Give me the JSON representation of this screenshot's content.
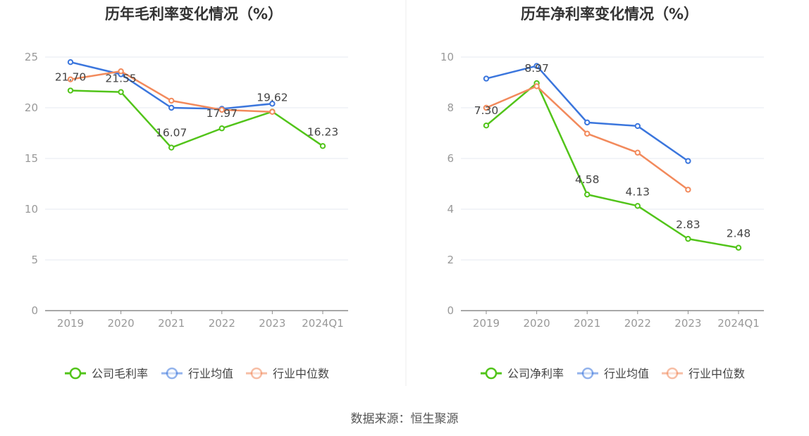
{
  "source": "数据来源：恒生聚源",
  "chart_data": [
    {
      "type": "line",
      "title": "历年毛利率变化情况（%）",
      "categories": [
        "2019",
        "2020",
        "2021",
        "2022",
        "2023",
        "2024Q1"
      ],
      "ylim": [
        0,
        25
      ],
      "yticks": [
        0,
        5,
        10,
        15,
        20,
        25
      ],
      "grid": true,
      "legend_position": "bottom",
      "series": [
        {
          "name": "公司毛利率",
          "color": "#52c41a",
          "values": [
            21.7,
            21.55,
            16.07,
            17.97,
            19.62,
            16.23
          ],
          "labels": [
            "21.70",
            "21.55",
            "16.07",
            "17.97",
            "19.62",
            "16.23"
          ]
        },
        {
          "name": "行业均值",
          "color": "#3b76dd",
          "values": [
            24.5,
            23.3,
            20.0,
            19.9,
            20.4,
            null
          ]
        },
        {
          "name": "行业中位数",
          "color": "#f28a5c",
          "values": [
            22.8,
            23.6,
            20.7,
            19.8,
            19.6,
            null
          ]
        }
      ]
    },
    {
      "type": "line",
      "title": "历年净利率变化情况（%）",
      "categories": [
        "2019",
        "2020",
        "2021",
        "2022",
        "2023",
        "2024Q1"
      ],
      "ylim": [
        0,
        10
      ],
      "yticks": [
        0,
        2,
        4,
        6,
        8,
        10
      ],
      "grid": true,
      "legend_position": "bottom",
      "series": [
        {
          "name": "公司净利率",
          "color": "#52c41a",
          "values": [
            7.3,
            8.97,
            4.58,
            4.13,
            2.83,
            2.48
          ],
          "labels": [
            "7.30",
            "8.97",
            "4.58",
            "4.13",
            "2.83",
            "2.48"
          ]
        },
        {
          "name": "行业均值",
          "color": "#3b76dd",
          "values": [
            9.15,
            9.65,
            7.42,
            7.28,
            5.9,
            null
          ]
        },
        {
          "name": "行业中位数",
          "color": "#f28a5c",
          "values": [
            8.0,
            8.85,
            6.98,
            6.23,
            4.77,
            null
          ]
        }
      ]
    }
  ]
}
